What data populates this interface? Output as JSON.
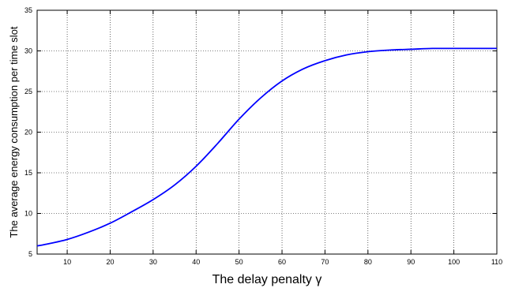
{
  "chart_data": {
    "type": "line",
    "title": "",
    "xlabel": "The delay penalty γ",
    "ylabel": "The average energy consumption per time slot",
    "xlim": [
      3,
      110
    ],
    "ylim": [
      5,
      35
    ],
    "xticks": [
      10,
      20,
      30,
      40,
      50,
      60,
      70,
      80,
      90,
      100,
      110
    ],
    "yticks": [
      5,
      10,
      15,
      20,
      25,
      30,
      35
    ],
    "grid": true,
    "legend": "none",
    "series": [
      {
        "color": "#0000ff",
        "x": [
          3,
          5,
          10,
          15,
          20,
          25,
          30,
          35,
          40,
          45,
          50,
          55,
          60,
          65,
          70,
          75,
          80,
          85,
          90,
          95,
          100,
          105,
          110
        ],
        "y": [
          6.0,
          6.2,
          6.8,
          7.7,
          8.8,
          10.2,
          11.7,
          13.5,
          15.8,
          18.6,
          21.6,
          24.2,
          26.3,
          27.8,
          28.8,
          29.5,
          29.9,
          30.1,
          30.2,
          30.3,
          30.3,
          30.3,
          30.3
        ]
      }
    ]
  }
}
